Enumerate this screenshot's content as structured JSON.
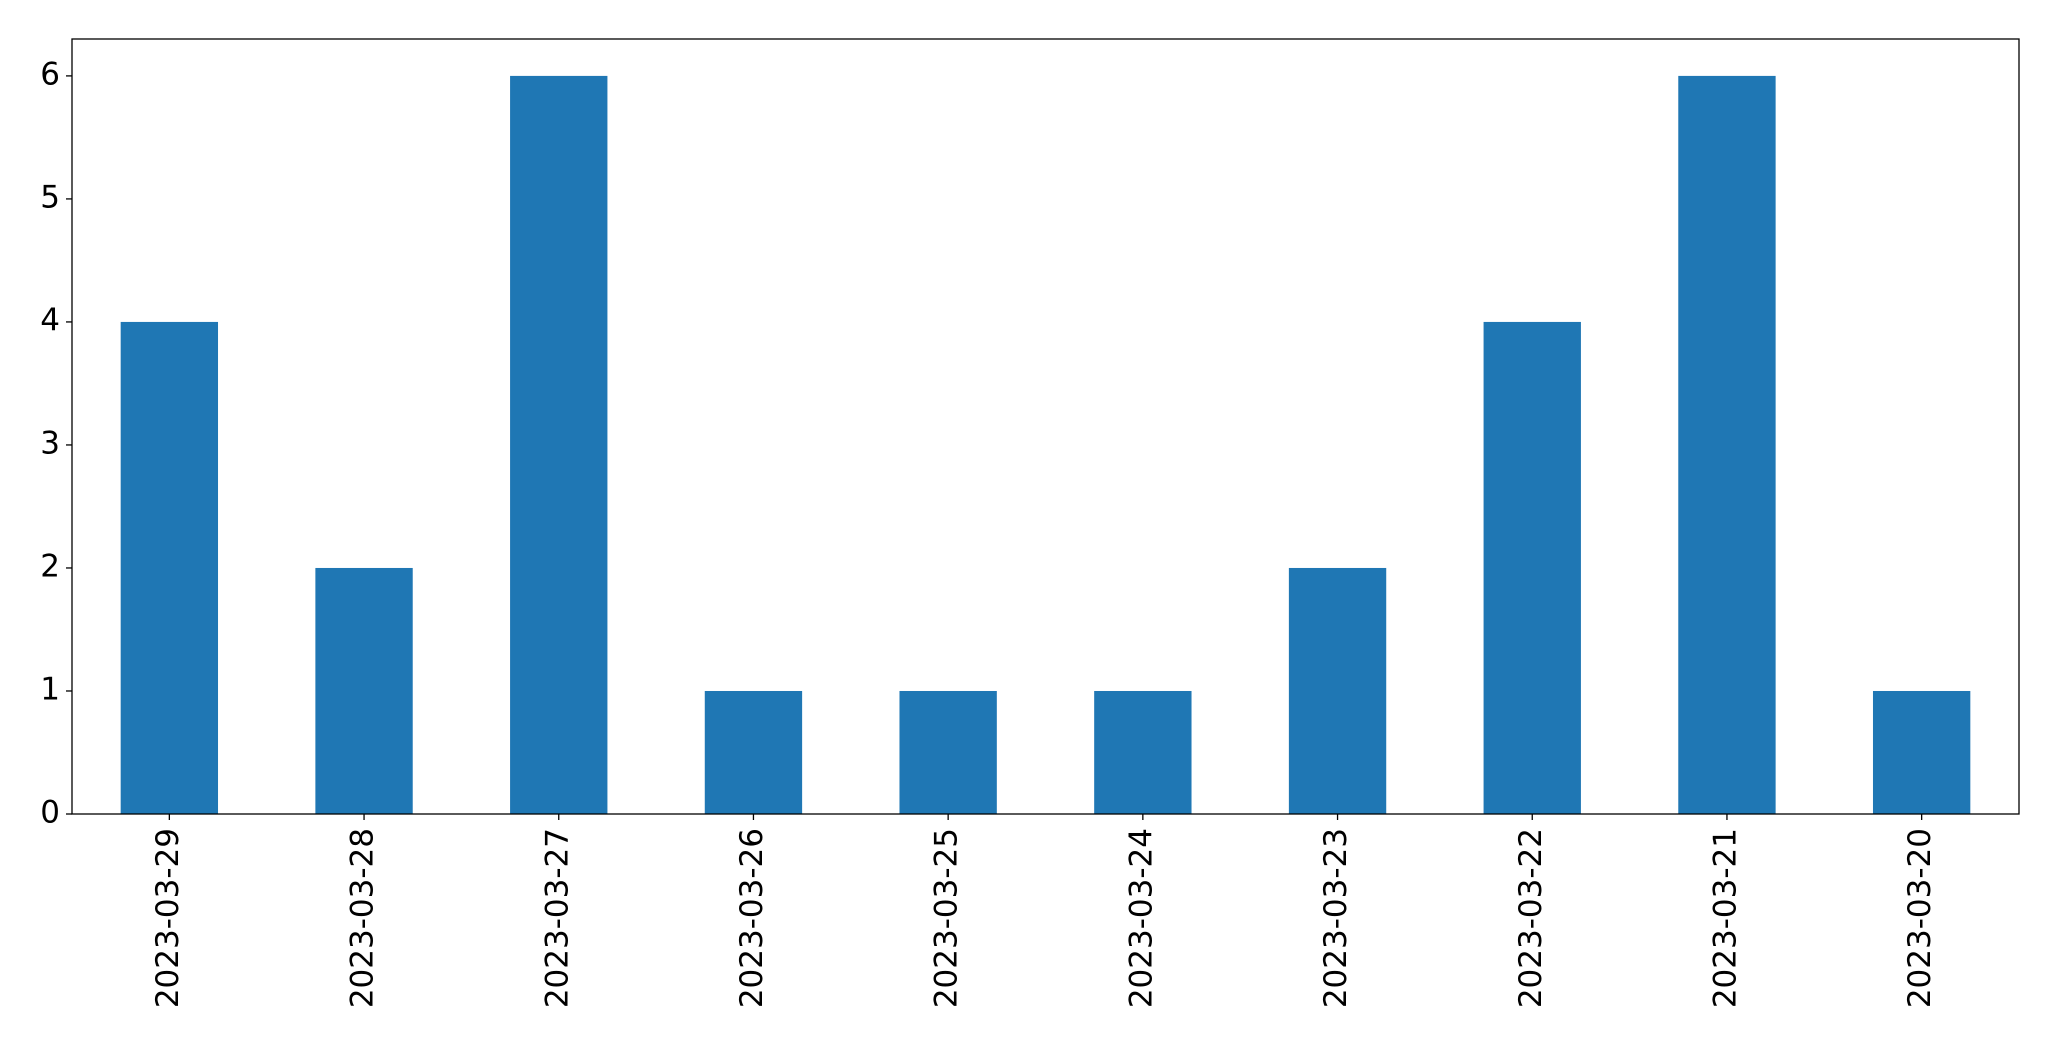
{
  "chart_data": {
    "type": "bar",
    "categories": [
      "2023-03-29",
      "2023-03-28",
      "2023-03-27",
      "2023-03-26",
      "2023-03-25",
      "2023-03-24",
      "2023-03-23",
      "2023-03-22",
      "2023-03-21",
      "2023-03-20"
    ],
    "values": [
      4,
      2,
      6,
      1,
      1,
      1,
      2,
      4,
      6,
      1
    ],
    "color": "#1f77b4",
    "ylim": [
      0,
      6.3
    ],
    "yticks": [
      0,
      1,
      2,
      3,
      4,
      5,
      6
    ],
    "grid": false
  }
}
